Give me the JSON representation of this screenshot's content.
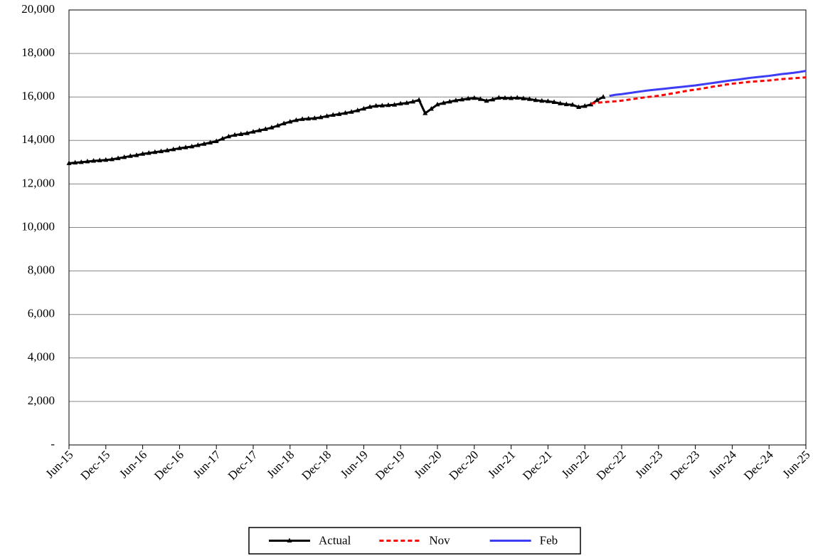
{
  "chart_data": {
    "type": "line",
    "categories": [
      "Jun-15",
      null,
      null,
      null,
      null,
      null,
      "Dec-15",
      null,
      null,
      null,
      null,
      null,
      "Jun-16",
      null,
      null,
      null,
      null,
      null,
      "Dec-16",
      null,
      null,
      null,
      null,
      null,
      "Jun-17",
      null,
      null,
      null,
      null,
      null,
      "Dec-17",
      null,
      null,
      null,
      null,
      null,
      "Jun-18",
      null,
      null,
      null,
      null,
      null,
      "Dec-18",
      null,
      null,
      null,
      null,
      null,
      "Jun-19",
      null,
      null,
      null,
      null,
      null,
      "Dec-19",
      null,
      null,
      null,
      null,
      null,
      "Jun-20",
      null,
      null,
      null,
      null,
      null,
      "Dec-20",
      null,
      null,
      null,
      null,
      null,
      "Jun-21",
      null,
      null,
      null,
      null,
      null,
      "Dec-21",
      null,
      null,
      null,
      null,
      null,
      "Jun-22",
      null,
      null,
      null,
      null,
      null,
      "Dec-22",
      null,
      null,
      null,
      null,
      null,
      "Jun-23",
      null,
      null,
      null,
      null,
      null,
      "Dec-23",
      null,
      null,
      null,
      null,
      null,
      "Jun-24",
      null,
      null,
      null,
      null,
      null,
      "Dec-24",
      null,
      null,
      null,
      null,
      null,
      "Jun-25"
    ],
    "series": [
      {
        "name": "Actual",
        "color": "#000000",
        "line_style": "solid",
        "marker": "triangle",
        "values": [
          12950,
          12980,
          13000,
          13030,
          13060,
          13080,
          13100,
          13130,
          13180,
          13230,
          13280,
          13320,
          13380,
          13420,
          13460,
          13500,
          13540,
          13590,
          13640,
          13680,
          13720,
          13780,
          13840,
          13900,
          13960,
          14080,
          14180,
          14250,
          14290,
          14330,
          14400,
          14460,
          14520,
          14590,
          14680,
          14780,
          14860,
          14930,
          14980,
          15000,
          15020,
          15060,
          15120,
          15170,
          15210,
          15260,
          15310,
          15380,
          15460,
          15540,
          15590,
          15600,
          15620,
          15640,
          15690,
          15720,
          15780,
          15860,
          15250,
          15450,
          15650,
          15720,
          15780,
          15840,
          15880,
          15920,
          15950,
          15900,
          15820,
          15880,
          15960,
          15950,
          15940,
          15960,
          15930,
          15900,
          15850,
          15820,
          15800,
          15760,
          15700,
          15660,
          15640,
          15530,
          15580,
          15650,
          15850,
          16000,
          null,
          null,
          null,
          null,
          null,
          null,
          null,
          null,
          null,
          null,
          null,
          null,
          null,
          null,
          null,
          null,
          null,
          null,
          null,
          null,
          null,
          null,
          null,
          null,
          null,
          null,
          null,
          null,
          null,
          null,
          null,
          null,
          null
        ]
      },
      {
        "name": "Nov",
        "color": "#ff0000",
        "line_style": "dashed",
        "marker": "none",
        "values": [
          null,
          null,
          null,
          null,
          null,
          null,
          null,
          null,
          null,
          null,
          null,
          null,
          null,
          null,
          null,
          null,
          null,
          null,
          null,
          null,
          null,
          null,
          null,
          null,
          null,
          null,
          null,
          null,
          null,
          null,
          null,
          null,
          null,
          null,
          null,
          null,
          null,
          null,
          null,
          null,
          null,
          null,
          null,
          null,
          null,
          null,
          null,
          null,
          null,
          null,
          null,
          null,
          null,
          null,
          null,
          null,
          null,
          null,
          null,
          null,
          null,
          null,
          null,
          null,
          null,
          null,
          null,
          null,
          null,
          null,
          null,
          null,
          null,
          null,
          null,
          null,
          null,
          null,
          null,
          null,
          null,
          null,
          null,
          null,
          null,
          15700,
          15730,
          15760,
          15780,
          15800,
          15830,
          15870,
          15910,
          15950,
          15990,
          16020,
          16050,
          16100,
          16150,
          16200,
          16250,
          16300,
          16340,
          16380,
          16430,
          16480,
          16520,
          16570,
          16610,
          16640,
          16670,
          16700,
          16720,
          16740,
          16760,
          16790,
          16820,
          16840,
          16860,
          16880,
          16900
        ]
      },
      {
        "name": "Feb",
        "color": "#3d3df5",
        "line_style": "solid",
        "marker": "none",
        "values": [
          null,
          null,
          null,
          null,
          null,
          null,
          null,
          null,
          null,
          null,
          null,
          null,
          null,
          null,
          null,
          null,
          null,
          null,
          null,
          null,
          null,
          null,
          null,
          null,
          null,
          null,
          null,
          null,
          null,
          null,
          null,
          null,
          null,
          null,
          null,
          null,
          null,
          null,
          null,
          null,
          null,
          null,
          null,
          null,
          null,
          null,
          null,
          null,
          null,
          null,
          null,
          null,
          null,
          null,
          null,
          null,
          null,
          null,
          null,
          null,
          null,
          null,
          null,
          null,
          null,
          null,
          null,
          null,
          null,
          null,
          null,
          null,
          null,
          null,
          null,
          null,
          null,
          null,
          null,
          null,
          null,
          null,
          null,
          null,
          null,
          null,
          null,
          null,
          16050,
          16100,
          16130,
          16170,
          16210,
          16250,
          16290,
          16320,
          16350,
          16380,
          16410,
          16440,
          16470,
          16500,
          16530,
          16570,
          16610,
          16650,
          16690,
          16730,
          16770,
          16800,
          16840,
          16880,
          16910,
          16940,
          16970,
          17010,
          17050,
          17080,
          17110,
          17150,
          17200
        ]
      }
    ],
    "ylim": [
      0,
      20000
    ],
    "yticks": [
      {
        "value": 0,
        "label": "-"
      },
      {
        "value": 2000,
        "label": "2,000"
      },
      {
        "value": 4000,
        "label": "4,000"
      },
      {
        "value": 6000,
        "label": "6,000"
      },
      {
        "value": 8000,
        "label": "8,000"
      },
      {
        "value": 10000,
        "label": "10,000"
      },
      {
        "value": 12000,
        "label": "12,000"
      },
      {
        "value": 14000,
        "label": "14,000"
      },
      {
        "value": 16000,
        "label": "16,000"
      },
      {
        "value": 18000,
        "label": "18,000"
      },
      {
        "value": 20000,
        "label": "20,000"
      }
    ],
    "grid": true,
    "legend": "bottom"
  }
}
